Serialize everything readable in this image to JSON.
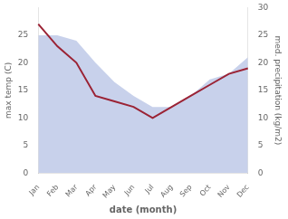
{
  "chart_data": {
    "type": "line",
    "xlabel": "date (month)",
    "ylabel": "max temp (C)",
    "y2label": "med. precipitation (kg/m2)",
    "categories": [
      "Jan",
      "Feb",
      "Mar",
      "Apr",
      "May",
      "Jun",
      "Jul",
      "Aug",
      "Sep",
      "Oct",
      "Nov",
      "Dec"
    ],
    "series": [
      {
        "type": "area",
        "color": "#aab8e0",
        "values": [
          25,
          25,
          24,
          20,
          16.5,
          14,
          12,
          12,
          14,
          17,
          18,
          21
        ]
      },
      {
        "type": "line",
        "color": "#9b2335",
        "axis": "y2",
        "values": [
          27,
          23,
          20,
          14,
          13,
          12,
          10,
          12,
          14,
          16,
          18,
          19
        ]
      }
    ],
    "ylim": [
      0,
      30
    ],
    "yticks": [
      0,
      5,
      10,
      15,
      20,
      25
    ],
    "y2lim": [
      0,
      30
    ],
    "y2ticks": [
      0,
      5,
      10,
      15,
      20,
      25,
      30
    ],
    "grid": false
  }
}
